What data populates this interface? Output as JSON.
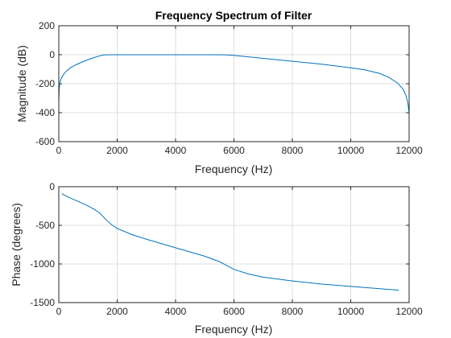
{
  "colors": {
    "line": "#0072BD",
    "axis": "#262626",
    "grid": "#dcdcdc"
  },
  "chart_data": [
    {
      "type": "line",
      "title": "Frequency Spectrum of Filter",
      "xlabel": "Frequency (Hz)",
      "ylabel": "Magnitude (dB)",
      "xlim": [
        0,
        12000
      ],
      "ylim": [
        -600,
        200
      ],
      "xticks": [
        0,
        2000,
        4000,
        6000,
        8000,
        10000,
        12000
      ],
      "yticks": [
        -600,
        -400,
        -200,
        0,
        200
      ],
      "grid": true,
      "series": [
        {
          "x": [
            0,
            15,
            40,
            80,
            150,
            250,
            400,
            600,
            800,
            1000,
            1200,
            1400,
            1500,
            1600,
            2000,
            3000,
            4000,
            5000,
            5700,
            6000,
            7000,
            8000,
            9000,
            10000,
            10500,
            11000,
            11300,
            11600,
            11800,
            11900,
            11960,
            12000
          ],
          "y": [
            -330,
            -240,
            -190,
            -165,
            -140,
            -115,
            -90,
            -68,
            -50,
            -34,
            -20,
            -8,
            -3,
            -1,
            0,
            0,
            0,
            0,
            -1,
            -5,
            -25,
            -45,
            -65,
            -90,
            -105,
            -130,
            -155,
            -195,
            -240,
            -285,
            -340,
            -400
          ]
        }
      ]
    },
    {
      "type": "line",
      "xlabel": "Frequency (Hz)",
      "ylabel": "Phase (degrees)",
      "xlim": [
        0,
        12000
      ],
      "ylim": [
        -1500,
        0
      ],
      "xticks": [
        0,
        2000,
        4000,
        6000,
        8000,
        10000,
        12000
      ],
      "yticks": [
        -1500,
        -1000,
        -500,
        0
      ],
      "grid": true,
      "series": [
        {
          "x": [
            100,
            300,
            600,
            900,
            1200,
            1400,
            1600,
            1800,
            2000,
            2500,
            3000,
            4000,
            5000,
            5500,
            6000,
            6500,
            7000,
            8000,
            9000,
            10000,
            11000,
            11650
          ],
          "y": [
            -90,
            -130,
            -180,
            -230,
            -290,
            -340,
            -420,
            -490,
            -540,
            -620,
            -680,
            -790,
            -900,
            -970,
            -1070,
            -1130,
            -1170,
            -1220,
            -1260,
            -1290,
            -1320,
            -1340
          ]
        }
      ]
    }
  ]
}
